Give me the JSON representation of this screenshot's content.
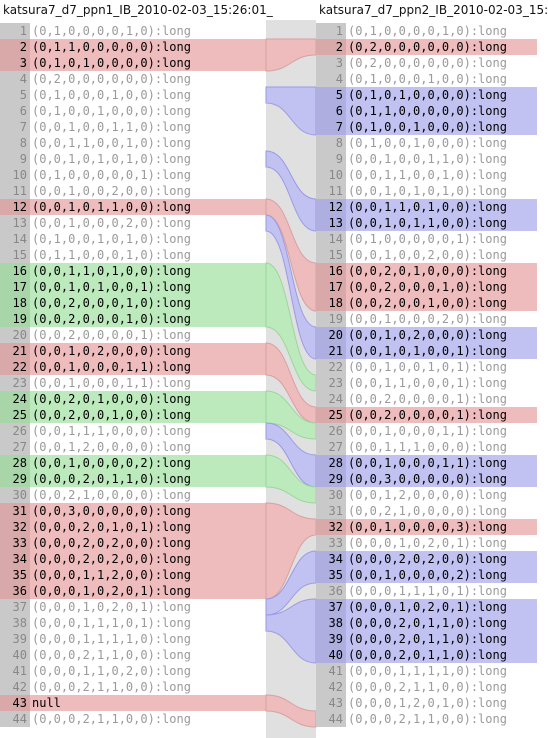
{
  "headers": {
    "left": "katsura7_d7_ppn1_IB_2010-02-03_15:26:01_",
    "right": "katsura7_d7_ppn2_IB_2010-02-03_15:"
  },
  "colors": {
    "removed": "#eebcbc",
    "added": "#bdeabd",
    "modified": "#c2c2f2",
    "gutter": "#c9c9c9"
  },
  "left_lines": [
    {
      "n": "1",
      "text": "(0,1,0,0,0,0,1,0):long",
      "status": "same"
    },
    {
      "n": "2",
      "text": "(0,1,1,0,0,0,0,0):long",
      "status": "red"
    },
    {
      "n": "3",
      "text": "(0,1,0,1,0,0,0,0):long",
      "status": "red"
    },
    {
      "n": "4",
      "text": "(0,2,0,0,0,0,0,0):long",
      "status": "same"
    },
    {
      "n": "5",
      "text": "(0,1,0,0,0,1,0,0):long",
      "status": "same"
    },
    {
      "n": "6",
      "text": "(0,1,0,0,1,0,0,0):long",
      "status": "same"
    },
    {
      "n": "7",
      "text": "(0,0,1,0,0,1,1,0):long",
      "status": "same"
    },
    {
      "n": "8",
      "text": "(0,0,1,1,0,0,1,0):long",
      "status": "same"
    },
    {
      "n": "9",
      "text": "(0,0,1,0,1,0,1,0):long",
      "status": "same"
    },
    {
      "n": "10",
      "text": "(0,1,0,0,0,0,0,1):long",
      "status": "same"
    },
    {
      "n": "11",
      "text": "(0,0,1,0,0,2,0,0):long",
      "status": "same"
    },
    {
      "n": "12",
      "text": "(0,0,1,0,1,1,0,0):long",
      "status": "red"
    },
    {
      "n": "13",
      "text": "(0,0,1,0,0,0,2,0):long",
      "status": "same"
    },
    {
      "n": "14",
      "text": "(0,1,0,0,1,0,1,0):long",
      "status": "same"
    },
    {
      "n": "15",
      "text": "(0,1,1,0,0,0,1,0):long",
      "status": "same"
    },
    {
      "n": "16",
      "text": "(0,0,1,1,0,1,0,0):long",
      "status": "green"
    },
    {
      "n": "17",
      "text": "(0,0,1,0,1,0,0,1):long",
      "status": "green"
    },
    {
      "n": "18",
      "text": "(0,0,2,0,0,0,1,0):long",
      "status": "green"
    },
    {
      "n": "19",
      "text": "(0,0,2,0,0,0,1,0):long",
      "status": "green"
    },
    {
      "n": "20",
      "text": "(0,0,2,0,0,0,0,1):long",
      "status": "same"
    },
    {
      "n": "21",
      "text": "(0,0,1,0,2,0,0,0):long",
      "status": "red"
    },
    {
      "n": "22",
      "text": "(0,0,1,0,0,0,1,1):long",
      "status": "red"
    },
    {
      "n": "23",
      "text": "(0,0,1,0,0,0,1,1):long",
      "status": "same"
    },
    {
      "n": "24",
      "text": "(0,0,2,0,1,0,0,0):long",
      "status": "green"
    },
    {
      "n": "25",
      "text": "(0,0,2,0,0,1,0,0):long",
      "status": "green"
    },
    {
      "n": "26",
      "text": "(0,0,1,1,1,0,0,0):long",
      "status": "same"
    },
    {
      "n": "27",
      "text": "(0,0,1,2,0,0,0,0):long",
      "status": "same"
    },
    {
      "n": "28",
      "text": "(0,0,1,0,0,0,0,2):long",
      "status": "green"
    },
    {
      "n": "29",
      "text": "(0,0,0,2,0,1,1,0):long",
      "status": "green"
    },
    {
      "n": "30",
      "text": "(0,0,2,1,0,0,0,0):long",
      "status": "same"
    },
    {
      "n": "31",
      "text": "(0,0,3,0,0,0,0,0):long",
      "status": "red"
    },
    {
      "n": "32",
      "text": "(0,0,0,2,0,1,0,1):long",
      "status": "red"
    },
    {
      "n": "33",
      "text": "(0,0,0,2,0,2,0,0):long",
      "status": "red"
    },
    {
      "n": "34",
      "text": "(0,0,0,2,0,2,0,0):long",
      "status": "red"
    },
    {
      "n": "35",
      "text": "(0,0,0,1,1,2,0,0):long",
      "status": "red"
    },
    {
      "n": "36",
      "text": "(0,0,0,1,0,2,0,1):long",
      "status": "red"
    },
    {
      "n": "37",
      "text": "(0,0,0,1,0,2,0,1):long",
      "status": "same"
    },
    {
      "n": "38",
      "text": "(0,0,0,1,1,1,0,1):long",
      "status": "same"
    },
    {
      "n": "39",
      "text": "(0,0,0,1,1,1,1,0):long",
      "status": "same"
    },
    {
      "n": "40",
      "text": "(0,0,0,2,1,1,0,0):long",
      "status": "same"
    },
    {
      "n": "41",
      "text": "(0,0,0,1,1,0,2,0):long",
      "status": "same"
    },
    {
      "n": "42",
      "text": "(0,0,0,2,1,1,0,0):long",
      "status": "same"
    },
    {
      "n": "43",
      "text": "null",
      "status": "red"
    },
    {
      "n": "44",
      "text": "(0,0,0,2,1,1,0,0):long",
      "status": "same"
    }
  ],
  "right_lines": [
    {
      "n": "1",
      "text": "(0,1,0,0,0,0,1,0):long",
      "status": "same"
    },
    {
      "n": "2",
      "text": "(0,2,0,0,0,0,0,0):long",
      "status": "red"
    },
    {
      "n": "3",
      "text": "(0,2,0,0,0,0,0,0):long",
      "status": "same"
    },
    {
      "n": "4",
      "text": "(0,1,0,0,0,1,0,0):long",
      "status": "same"
    },
    {
      "n": "5",
      "text": "(0,1,0,1,0,0,0,0):long",
      "status": "blue"
    },
    {
      "n": "6",
      "text": "(0,1,1,0,0,0,0,0):long",
      "status": "blue"
    },
    {
      "n": "7",
      "text": "(0,1,0,0,1,0,0,0):long",
      "status": "blue"
    },
    {
      "n": "8",
      "text": "(0,1,0,0,1,0,0,0):long",
      "status": "same"
    },
    {
      "n": "9",
      "text": "(0,0,1,0,0,1,1,0):long",
      "status": "same"
    },
    {
      "n": "10",
      "text": "(0,0,1,1,0,0,1,0):long",
      "status": "same"
    },
    {
      "n": "11",
      "text": "(0,0,1,0,1,0,1,0):long",
      "status": "same"
    },
    {
      "n": "12",
      "text": "(0,0,1,1,0,1,0,0):long",
      "status": "blue"
    },
    {
      "n": "13",
      "text": "(0,0,1,0,1,1,0,0):long",
      "status": "blue"
    },
    {
      "n": "14",
      "text": "(0,1,0,0,0,0,0,1):long",
      "status": "same"
    },
    {
      "n": "15",
      "text": "(0,0,1,0,0,2,0,0):long",
      "status": "same"
    },
    {
      "n": "16",
      "text": "(0,0,2,0,1,0,0,0):long",
      "status": "red"
    },
    {
      "n": "17",
      "text": "(0,0,2,0,0,0,1,0):long",
      "status": "red"
    },
    {
      "n": "18",
      "text": "(0,0,2,0,0,1,0,0):long",
      "status": "red"
    },
    {
      "n": "19",
      "text": "(0,0,1,0,0,0,2,0):long",
      "status": "same"
    },
    {
      "n": "20",
      "text": "(0,0,1,0,2,0,0,0):long",
      "status": "blue"
    },
    {
      "n": "21",
      "text": "(0,0,1,0,1,0,0,1):long",
      "status": "blue"
    },
    {
      "n": "22",
      "text": "(0,0,1,0,0,1,0,1):long",
      "status": "same"
    },
    {
      "n": "23",
      "text": "(0,0,1,1,0,0,0,1):long",
      "status": "same"
    },
    {
      "n": "24",
      "text": "(0,0,2,0,0,0,0,1):long",
      "status": "same"
    },
    {
      "n": "25",
      "text": "(0,0,2,0,0,0,0,1):long",
      "status": "red"
    },
    {
      "n": "26",
      "text": "(0,0,1,0,0,0,1,1):long",
      "status": "same"
    },
    {
      "n": "27",
      "text": "(0,0,1,1,1,0,0,0):long",
      "status": "same"
    },
    {
      "n": "28",
      "text": "(0,0,1,0,0,0,1,1):long",
      "status": "blue"
    },
    {
      "n": "29",
      "text": "(0,0,3,0,0,0,0,0):long",
      "status": "blue"
    },
    {
      "n": "30",
      "text": "(0,0,1,2,0,0,0,0):long",
      "status": "same"
    },
    {
      "n": "31",
      "text": "(0,0,2,1,0,0,0,0):long",
      "status": "same"
    },
    {
      "n": "32",
      "text": "(0,0,1,0,0,0,0,3):long",
      "status": "red"
    },
    {
      "n": "33",
      "text": "(0,0,0,1,0,2,0,1):long",
      "status": "same"
    },
    {
      "n": "34",
      "text": "(0,0,0,2,0,2,0,0):long",
      "status": "blue"
    },
    {
      "n": "35",
      "text": "(0,0,1,0,0,0,0,2):long",
      "status": "blue"
    },
    {
      "n": "36",
      "text": "(0,0,0,1,1,1,0,1):long",
      "status": "same"
    },
    {
      "n": "37",
      "text": "(0,0,0,1,0,2,0,1):long",
      "status": "blue"
    },
    {
      "n": "38",
      "text": "(0,0,0,2,0,1,1,0):long",
      "status": "blue"
    },
    {
      "n": "39",
      "text": "(0,0,0,2,0,1,1,0):long",
      "status": "blue"
    },
    {
      "n": "40",
      "text": "(0,0,0,2,0,1,1,0):long",
      "status": "blue"
    },
    {
      "n": "41",
      "text": "(0,0,0,1,1,1,1,0):long",
      "status": "same"
    },
    {
      "n": "42",
      "text": "(0,0,0,2,1,1,0,0):long",
      "status": "same"
    },
    {
      "n": "43",
      "text": "(0,0,0,1,2,0,1,0):long",
      "status": "same"
    },
    {
      "n": "44",
      "text": "(0,0,0,2,1,1,0,0):long",
      "status": "same"
    }
  ],
  "connectors": [
    {
      "color": "red",
      "left": [
        2,
        3
      ],
      "right": [
        2,
        2
      ]
    },
    {
      "color": "blue",
      "left": [
        5,
        5
      ],
      "right": [
        5,
        7
      ]
    },
    {
      "color": "blue",
      "left": [
        9,
        9
      ],
      "right": [
        12,
        13
      ]
    },
    {
      "color": "red",
      "left": [
        12,
        12
      ],
      "right": [
        16,
        18
      ]
    },
    {
      "color": "blue",
      "left": [
        13,
        13
      ],
      "right": [
        20,
        21
      ]
    },
    {
      "color": "green",
      "left": [
        16,
        19
      ],
      "right": [
        23,
        23
      ]
    },
    {
      "color": "red",
      "left": [
        21,
        22
      ],
      "right": [
        25,
        25
      ]
    },
    {
      "color": "green",
      "left": [
        24,
        25
      ],
      "right": [
        26,
        26
      ]
    },
    {
      "color": "blue",
      "left": [
        26,
        26
      ],
      "right": [
        28,
        29
      ]
    },
    {
      "color": "green",
      "left": [
        28,
        29
      ],
      "right": [
        30,
        30
      ]
    },
    {
      "color": "red",
      "left": [
        31,
        36
      ],
      "right": [
        32,
        32
      ]
    },
    {
      "color": "blue",
      "left": [
        37,
        37
      ],
      "right": [
        34,
        35
      ]
    },
    {
      "color": "blue",
      "left": [
        38,
        38
      ],
      "right": [
        37,
        40
      ]
    },
    {
      "color": "red",
      "left": [
        43,
        43
      ],
      "right": [
        44,
        44
      ]
    }
  ]
}
